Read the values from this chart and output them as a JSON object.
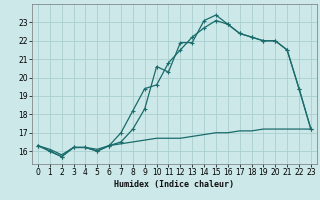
{
  "xlabel": "Humidex (Indice chaleur)",
  "bg_color": "#cce8e8",
  "line_color": "#1a6b6b",
  "grid_color": "#aacfcf",
  "xlim": [
    -0.5,
    23.5
  ],
  "ylim": [
    15.3,
    24.0
  ],
  "yticks": [
    16,
    17,
    18,
    19,
    20,
    21,
    22,
    23
  ],
  "xticks": [
    0,
    1,
    2,
    3,
    4,
    5,
    6,
    7,
    8,
    9,
    10,
    11,
    12,
    13,
    14,
    15,
    16,
    17,
    18,
    19,
    20,
    21,
    22,
    23
  ],
  "line1_x": [
    0,
    1,
    2,
    3,
    4,
    5,
    6,
    7,
    8,
    9,
    10,
    11,
    12,
    13,
    14,
    15,
    16,
    17,
    18,
    19,
    20,
    21,
    22,
    23
  ],
  "line1_y": [
    16.3,
    16.0,
    15.7,
    16.2,
    16.2,
    16.0,
    16.3,
    16.5,
    17.2,
    18.3,
    20.6,
    20.3,
    21.9,
    21.9,
    23.1,
    23.4,
    22.9,
    22.4,
    22.2,
    22.0,
    22.0,
    21.5,
    19.4,
    17.2
  ],
  "line2_x": [
    0,
    1,
    2,
    3,
    4,
    5,
    6,
    7,
    8,
    9,
    10,
    11,
    12,
    13,
    14,
    15,
    16,
    17,
    18,
    19,
    20,
    21,
    22,
    23
  ],
  "line2_y": [
    16.3,
    16.0,
    15.7,
    16.2,
    16.2,
    16.0,
    16.3,
    17.0,
    18.2,
    19.4,
    19.6,
    20.8,
    21.5,
    22.2,
    22.7,
    23.1,
    22.9,
    22.4,
    22.2,
    22.0,
    22.0,
    21.5,
    19.4,
    17.2
  ],
  "line3_x": [
    0,
    1,
    2,
    3,
    4,
    5,
    6,
    7,
    8,
    9,
    10,
    11,
    12,
    13,
    14,
    15,
    16,
    17,
    18,
    19,
    20,
    21,
    22,
    23
  ],
  "line3_y": [
    16.3,
    16.1,
    15.8,
    16.2,
    16.2,
    16.1,
    16.3,
    16.4,
    16.5,
    16.6,
    16.7,
    16.7,
    16.7,
    16.8,
    16.9,
    17.0,
    17.0,
    17.1,
    17.1,
    17.2,
    17.2,
    17.2,
    17.2,
    17.2
  ],
  "tick_fontsize": 5.5,
  "xlabel_fontsize": 6.0,
  "lw": 0.9,
  "marker_size": 2.5
}
